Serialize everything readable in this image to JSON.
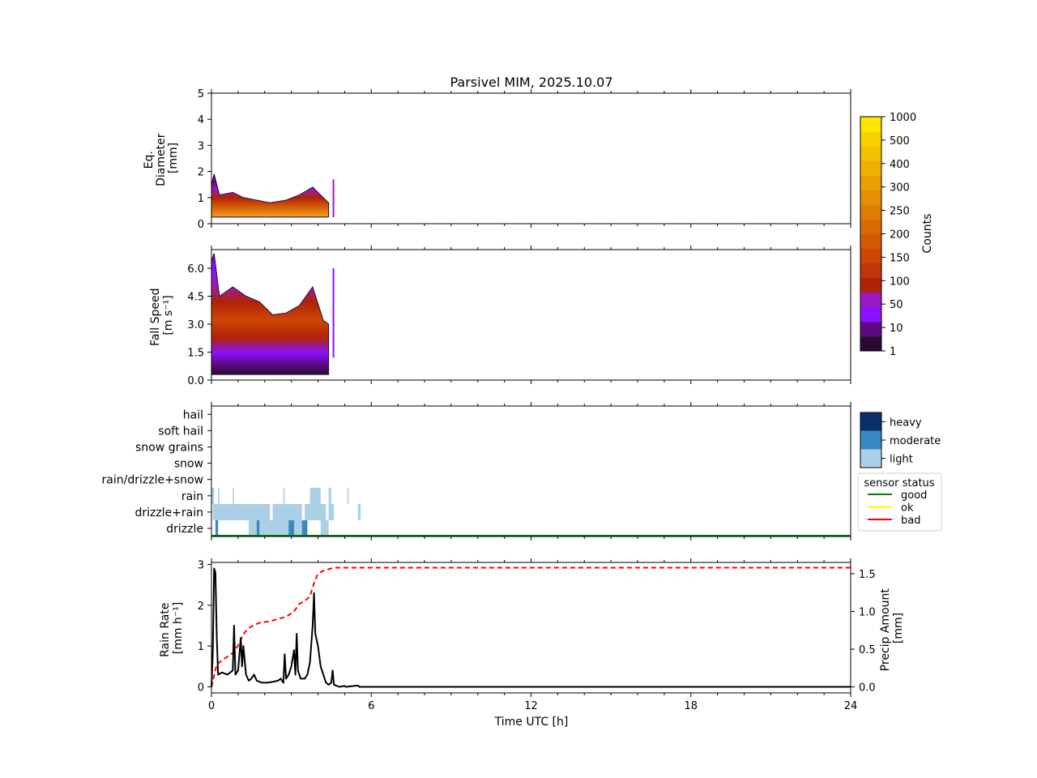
{
  "chart_data": {
    "type": "multi-panel",
    "title": "Parsivel MIM, 2025.10.07",
    "x_axis": {
      "label": "Time UTC [h]",
      "range": [
        0,
        24
      ],
      "ticks": [
        0,
        6,
        12,
        18,
        24
      ]
    },
    "panels": [
      {
        "id": "diameter",
        "type": "heatmap",
        "ylabel": [
          "Eq.",
          "Diameter",
          "[mm]"
        ],
        "ylim": [
          0,
          5
        ],
        "yticks": [
          0,
          1,
          2,
          3,
          4,
          5
        ],
        "data_extent_hours": [
          0,
          4.6
        ],
        "upper_envelope_mm": [
          [
            0.0,
            1.5
          ],
          [
            0.1,
            1.9
          ],
          [
            0.3,
            1.1
          ],
          [
            0.8,
            1.2
          ],
          [
            1.2,
            1.0
          ],
          [
            1.7,
            0.9
          ],
          [
            2.2,
            0.8
          ],
          [
            2.8,
            0.9
          ],
          [
            3.3,
            1.1
          ],
          [
            3.8,
            1.4
          ],
          [
            4.2,
            1.0
          ],
          [
            4.4,
            0.8
          ]
        ],
        "lower_bound_mm": 0.25,
        "core_mm": [
          0.3,
          0.6
        ]
      },
      {
        "id": "fallspeed",
        "type": "heatmap",
        "ylabel": [
          "Fall Speed",
          "[m s⁻¹]"
        ],
        "ylim": [
          0,
          7
        ],
        "yticks": [
          "0.0",
          "1.5",
          "3.0",
          "4.5",
          "6.0"
        ],
        "data_extent_hours": [
          0,
          4.6
        ],
        "upper_envelope_ms": [
          [
            0.0,
            6.4
          ],
          [
            0.1,
            6.8
          ],
          [
            0.3,
            4.5
          ],
          [
            0.8,
            5.0
          ],
          [
            1.3,
            4.5
          ],
          [
            1.8,
            4.2
          ],
          [
            2.3,
            3.5
          ],
          [
            2.8,
            3.6
          ],
          [
            3.3,
            4.0
          ],
          [
            3.8,
            5.0
          ],
          [
            4.2,
            3.2
          ],
          [
            4.4,
            3.0
          ]
        ],
        "lower_envelope_ms": 0.3,
        "core_ms": [
          1.5,
          3.2
        ]
      },
      {
        "id": "precip_type",
        "type": "categorical",
        "categories": [
          "drizzle",
          "drizzle+rain",
          "rain",
          "rain/drizzle+snow",
          "snow",
          "snow grains",
          "soft hail",
          "hail"
        ],
        "intensity_legend": {
          "levels": [
            "light",
            "moderate",
            "heavy"
          ],
          "colors": [
            "#abcfe5",
            "#3888c1",
            "#08306b"
          ]
        },
        "sensor_status_legend": {
          "title": "sensor status",
          "entries": [
            {
              "label": "good",
              "color": "#008000"
            },
            {
              "label": "ok",
              "color": "#ffff00"
            },
            {
              "label": "bad",
              "color": "#ff0000"
            }
          ]
        },
        "sensor_status_series": [
          {
            "from": 0,
            "to": 24,
            "status": "good"
          }
        ],
        "events": [
          {
            "category": "drizzle+rain",
            "from": 0.05,
            "to": 1.5,
            "intensity": "light"
          },
          {
            "category": "drizzle+rain",
            "from": 1.5,
            "to": 2.2,
            "intensity": "light"
          },
          {
            "category": "drizzle+rain",
            "from": 2.3,
            "to": 3.4,
            "intensity": "light"
          },
          {
            "category": "drizzle+rain",
            "from": 3.5,
            "to": 4.3,
            "intensity": "light"
          },
          {
            "category": "drizzle+rain",
            "from": 4.4,
            "to": 4.6,
            "intensity": "light"
          },
          {
            "category": "drizzle+rain",
            "from": 5.5,
            "to": 5.6,
            "intensity": "light"
          },
          {
            "category": "drizzle",
            "from": 1.4,
            "to": 3.6,
            "intensity": "light"
          },
          {
            "category": "drizzle",
            "from": 4.1,
            "to": 4.4,
            "intensity": "light"
          },
          {
            "category": "drizzle",
            "from": 0.15,
            "to": 0.25,
            "intensity": "moderate"
          },
          {
            "category": "drizzle",
            "from": 1.7,
            "to": 1.8,
            "intensity": "moderate"
          },
          {
            "category": "drizzle",
            "from": 2.9,
            "to": 3.1,
            "intensity": "moderate"
          },
          {
            "category": "drizzle",
            "from": 3.4,
            "to": 3.6,
            "intensity": "moderate"
          },
          {
            "category": "rain",
            "from": 0.0,
            "to": 0.1,
            "intensity": "light"
          },
          {
            "category": "rain",
            "from": 0.25,
            "to": 0.3,
            "intensity": "light"
          },
          {
            "category": "rain",
            "from": 0.8,
            "to": 0.85,
            "intensity": "light"
          },
          {
            "category": "rain",
            "from": 2.7,
            "to": 2.75,
            "intensity": "light"
          },
          {
            "category": "rain",
            "from": 3.7,
            "to": 4.1,
            "intensity": "light"
          },
          {
            "category": "rain",
            "from": 4.4,
            "to": 4.5,
            "intensity": "light"
          },
          {
            "category": "rain",
            "from": 5.1,
            "to": 5.15,
            "intensity": "light"
          }
        ]
      },
      {
        "id": "rainrate",
        "type": "line",
        "ylabel": [
          "Rain Rate",
          "[mm h⁻¹]"
        ],
        "ylim": [
          -0.15,
          3.05
        ],
        "yticks": [
          0,
          1,
          2,
          3
        ],
        "y2label": [
          "Precip Amount",
          "[mm]"
        ],
        "y2lim": [
          -0.08,
          1.65
        ],
        "y2ticks": [
          "0.0",
          "0.5",
          "1.0",
          "1.5"
        ],
        "series": [
          {
            "name": "rain rate",
            "axis": "left",
            "color": "#000000",
            "style": "solid",
            "points": [
              [
                0.0,
                0.0
              ],
              [
                0.05,
                0.8
              ],
              [
                0.1,
                2.9
              ],
              [
                0.15,
                2.8
              ],
              [
                0.2,
                1.2
              ],
              [
                0.25,
                0.3
              ],
              [
                0.4,
                0.35
              ],
              [
                0.6,
                0.3
              ],
              [
                0.8,
                0.4
              ],
              [
                0.85,
                1.5
              ],
              [
                0.9,
                0.3
              ],
              [
                1.0,
                0.4
              ],
              [
                1.1,
                1.2
              ],
              [
                1.15,
                0.5
              ],
              [
                1.2,
                1.0
              ],
              [
                1.3,
                0.3
              ],
              [
                1.4,
                0.15
              ],
              [
                1.5,
                0.2
              ],
              [
                1.6,
                0.3
              ],
              [
                1.7,
                0.15
              ],
              [
                1.9,
                0.1
              ],
              [
                2.1,
                0.1
              ],
              [
                2.3,
                0.12
              ],
              [
                2.5,
                0.15
              ],
              [
                2.6,
                0.2
              ],
              [
                2.7,
                0.1
              ],
              [
                2.75,
                0.8
              ],
              [
                2.8,
                0.2
              ],
              [
                2.9,
                0.3
              ],
              [
                3.0,
                0.5
              ],
              [
                3.1,
                0.9
              ],
              [
                3.15,
                0.3
              ],
              [
                3.2,
                1.3
              ],
              [
                3.25,
                0.4
              ],
              [
                3.35,
                0.2
              ],
              [
                3.5,
                0.2
              ],
              [
                3.6,
                0.3
              ],
              [
                3.7,
                0.6
              ],
              [
                3.8,
                1.5
              ],
              [
                3.85,
                2.3
              ],
              [
                3.9,
                1.3
              ],
              [
                4.0,
                1.0
              ],
              [
                4.1,
                0.5
              ],
              [
                4.2,
                0.3
              ],
              [
                4.3,
                0.1
              ],
              [
                4.4,
                0.05
              ],
              [
                4.5,
                0.1
              ],
              [
                4.55,
                0.4
              ],
              [
                4.6,
                0.05
              ],
              [
                4.8,
                0.0
              ],
              [
                5.0,
                0.02
              ],
              [
                5.05,
                0.0
              ],
              [
                5.5,
                0.03
              ],
              [
                5.55,
                0.0
              ],
              [
                24.0,
                0.0
              ]
            ]
          },
          {
            "name": "precip amount",
            "axis": "right",
            "color": "#ff0000",
            "style": "dashed",
            "points": [
              [
                0.0,
                0.0
              ],
              [
                0.1,
                0.15
              ],
              [
                0.2,
                0.3
              ],
              [
                0.4,
                0.35
              ],
              [
                0.6,
                0.4
              ],
              [
                0.8,
                0.45
              ],
              [
                1.0,
                0.55
              ],
              [
                1.2,
                0.7
              ],
              [
                1.4,
                0.78
              ],
              [
                1.6,
                0.82
              ],
              [
                1.8,
                0.85
              ],
              [
                2.0,
                0.86
              ],
              [
                2.2,
                0.87
              ],
              [
                2.5,
                0.9
              ],
              [
                2.7,
                0.92
              ],
              [
                2.9,
                0.95
              ],
              [
                3.1,
                1.0
              ],
              [
                3.3,
                1.1
              ],
              [
                3.5,
                1.14
              ],
              [
                3.7,
                1.2
              ],
              [
                3.8,
                1.32
              ],
              [
                3.9,
                1.42
              ],
              [
                4.0,
                1.5
              ],
              [
                4.2,
                1.54
              ],
              [
                4.4,
                1.56
              ],
              [
                4.6,
                1.58
              ],
              [
                5.0,
                1.58
              ],
              [
                24.0,
                1.58
              ]
            ]
          }
        ]
      }
    ],
    "colorbar": {
      "label": "Counts",
      "tick_labels": [
        "1",
        "10",
        "50",
        "100",
        "150",
        "200",
        "250",
        "300",
        "400",
        "500",
        "1000"
      ],
      "colors": [
        "#2b0a36",
        "#5c0a80",
        "#8a10ff",
        "#9a19c6",
        "#b02208",
        "#c03408",
        "#cc4606",
        "#d45806",
        "#d96b05",
        "#df7d04",
        "#e58f03",
        "#eaa003",
        "#f0b002",
        "#f4c001",
        "#f8d200",
        "#ffe600"
      ]
    }
  }
}
